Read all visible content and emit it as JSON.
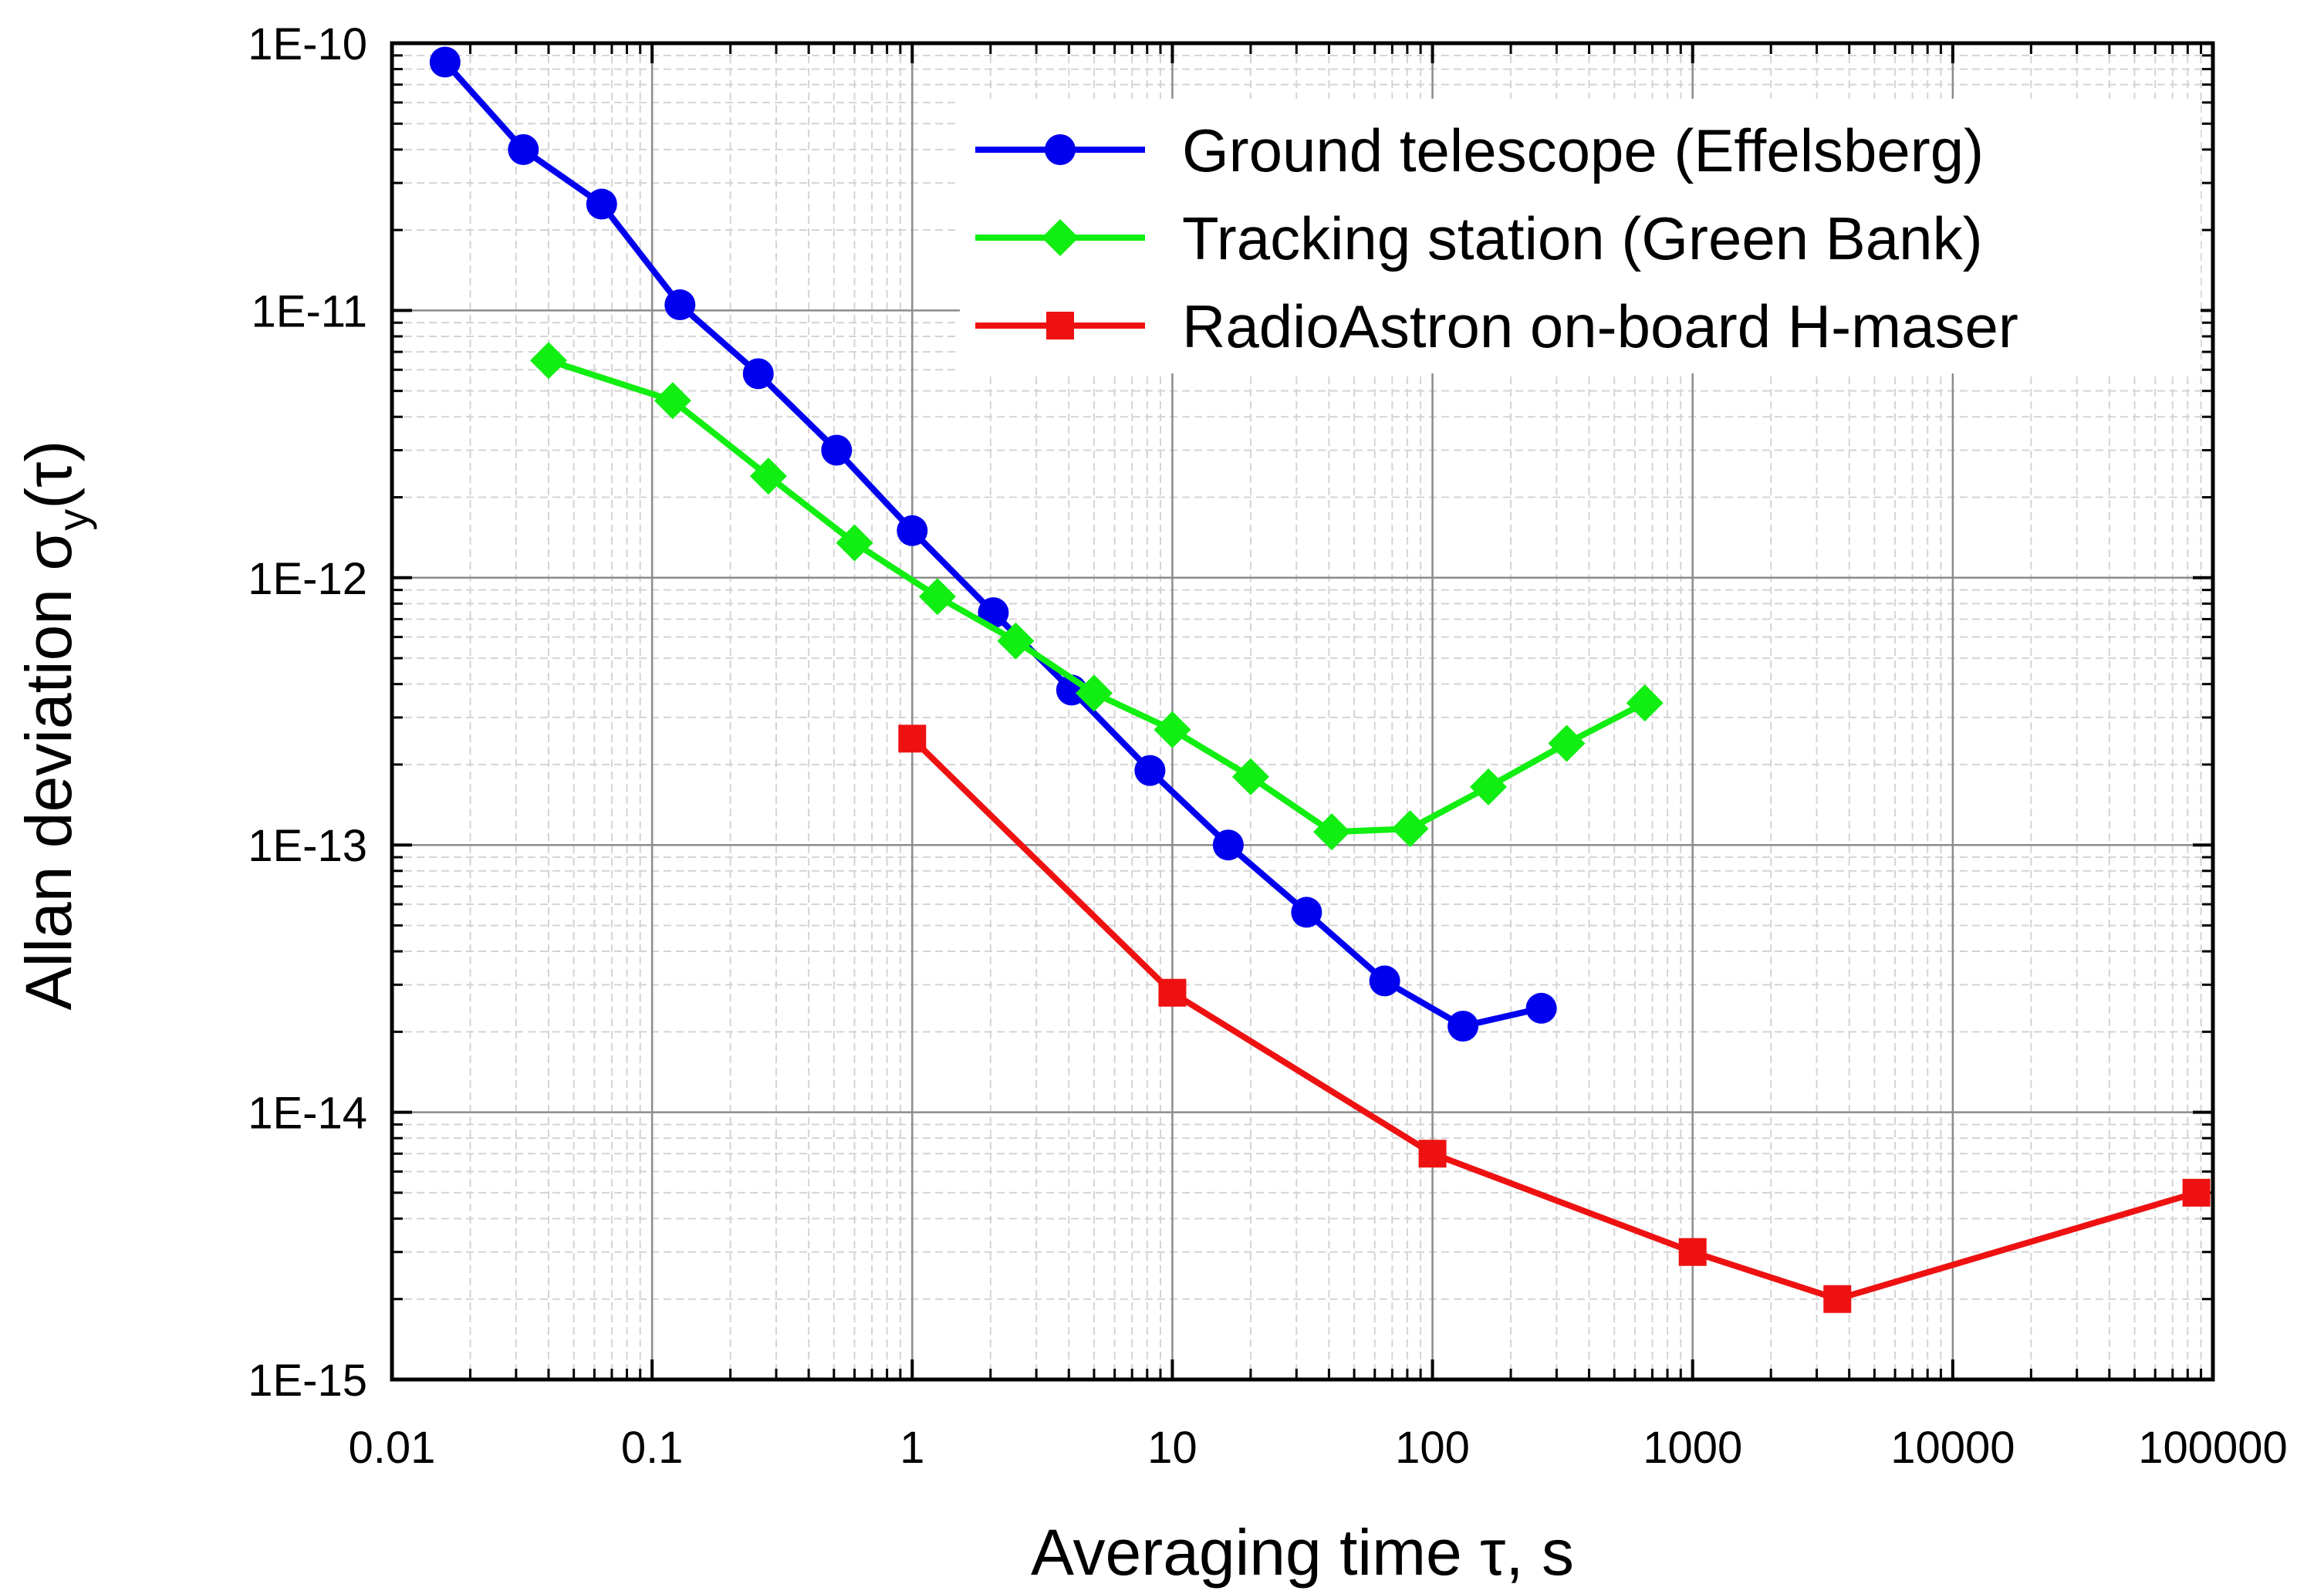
{
  "chart_data": {
    "type": "line",
    "x_scale": "log",
    "y_scale": "log",
    "xlim": [
      0.01,
      100000
    ],
    "ylim": [
      1e-15,
      1e-10
    ],
    "x_ticks": [
      0.01,
      0.1,
      1,
      10,
      100,
      1000,
      10000,
      100000
    ],
    "x_tick_labels": [
      "0.01",
      "0.1",
      "1",
      "10",
      "100",
      "1000",
      "10000",
      "100000"
    ],
    "y_ticks": [
      1e-15,
      1e-14,
      1e-13,
      1e-12,
      1e-11,
      1e-10
    ],
    "y_tick_labels": [
      "1E-15",
      "1E-14",
      "1E-13",
      "1E-12",
      "1E-11",
      "1E-10"
    ],
    "xlabel": "Averaging time τ, s",
    "ylabel": {
      "main": "Allan deviation σ",
      "sub": "y",
      "tail": "(τ)"
    },
    "grid": true,
    "legend_position": "top-right",
    "series": [
      {
        "name": "Ground telescope (Effelsberg)",
        "color": "#0000ee",
        "marker": "circle",
        "x": [
          0.016,
          0.032,
          0.064,
          0.128,
          0.256,
          0.512,
          1.0,
          2.05,
          4.1,
          8.2,
          16.4,
          32.8,
          65.5,
          131,
          262
        ],
        "y": [
          8.5e-11,
          4e-11,
          2.5e-11,
          1.05e-11,
          5.8e-12,
          3e-12,
          1.5e-12,
          7.4e-13,
          3.8e-13,
          1.9e-13,
          1e-13,
          5.6e-14,
          3.1e-14,
          2.1e-14,
          2.45e-14
        ]
      },
      {
        "name": "Tracking station (Green Bank)",
        "color": "#11ee11",
        "marker": "diamond",
        "x": [
          0.04,
          0.12,
          0.28,
          0.6,
          1.25,
          2.5,
          5.0,
          10.0,
          20.0,
          41.0,
          82.0,
          164,
          328,
          655
        ],
        "y": [
          6.5e-12,
          4.6e-12,
          2.4e-12,
          1.35e-12,
          8.5e-13,
          5.8e-13,
          3.7e-13,
          2.7e-13,
          1.8e-13,
          1.12e-13,
          1.15e-13,
          1.65e-13,
          2.4e-13,
          3.4e-13
        ]
      },
      {
        "name": "RadioAstron on-board H-maser",
        "color": "#ee1111",
        "marker": "square",
        "x": [
          1,
          10,
          100,
          1000,
          3600,
          86400
        ],
        "y": [
          2.5e-13,
          2.8e-14,
          7e-15,
          3e-15,
          2e-15,
          5e-15
        ]
      }
    ]
  }
}
